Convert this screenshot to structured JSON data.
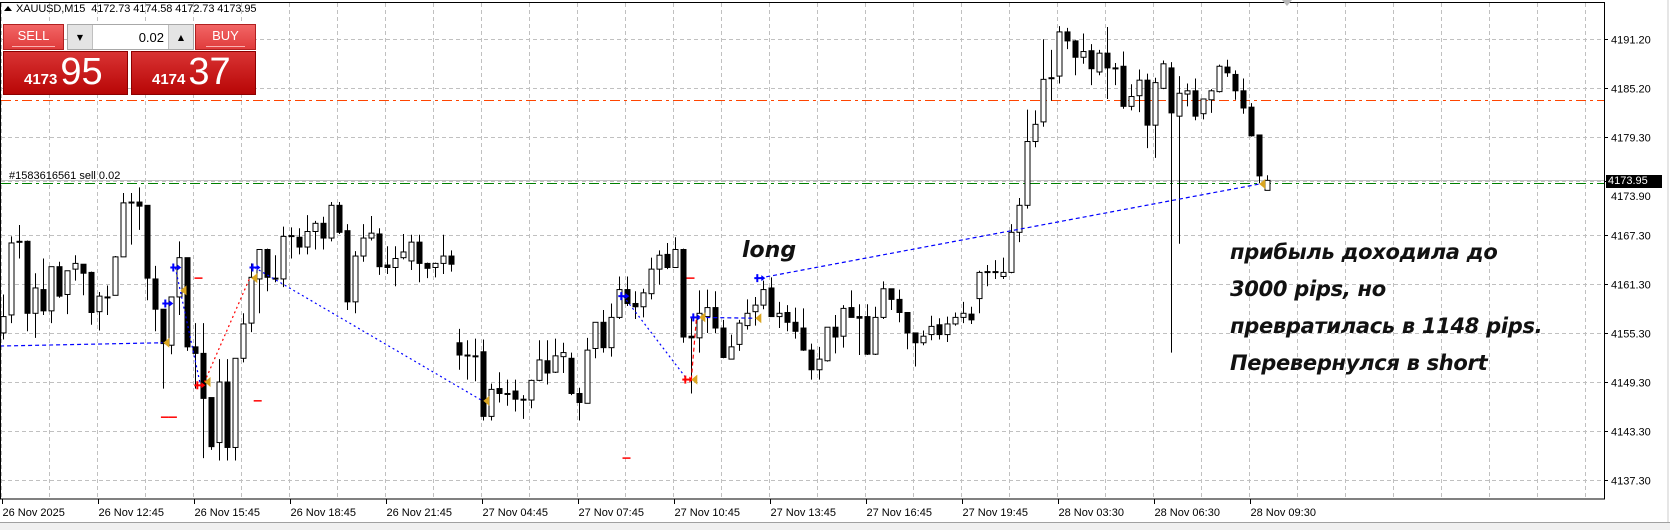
{
  "header": {
    "symbol_tf": "XAUUSD,M15",
    "ohlc": "4172.73 4174.58 4172.73 4173.95"
  },
  "trade_panel": {
    "sell_label": "SELL",
    "buy_label": "BUY",
    "lot_value": "0.02",
    "lot_down_icon": "triangle-down",
    "lot_up_icon": "triangle-up",
    "bid_big": "4173",
    "bid_small": "95",
    "ask_big": "4174",
    "ask_small": "37",
    "color": "#c81414"
  },
  "order_label": "#1583616561 sell 0.02",
  "bid_label": "4173.95",
  "annotations": {
    "long": "long",
    "note_lines": [
      "прибыль доходила до",
      "3000 pips, но",
      "превратилась в 1148 pips.",
      "Перевернулся в short"
    ]
  },
  "chart_data": {
    "type": "candlestick",
    "symbol": "XAUUSD",
    "timeframe": "M15",
    "ylim": [
      4135.0,
      4196.0
    ],
    "grid": true,
    "y_ticks": [
      "4191.20",
      "4185.20",
      "4179.30",
      "4173.90",
      "4167.30",
      "4161.30",
      "4155.30",
      "4149.30",
      "4143.30",
      "4137.30"
    ],
    "x_ticks": [
      "26 Nov 2025",
      "26 Nov 12:45",
      "26 Nov 15:45",
      "26 Nov 18:45",
      "26 Nov 21:45",
      "27 Nov 04:45",
      "27 Nov 07:45",
      "27 Nov 10:45",
      "27 Nov 13:45",
      "27 Nov 16:45",
      "27 Nov 19:45",
      "28 Nov 03:30",
      "28 Nov 06:30",
      "28 Nov 09:30"
    ],
    "colors": {
      "bull_body": "#ffffff",
      "bear_body": "#000000",
      "outline": "#000000",
      "grid": "#c0c0c0",
      "bid_line": "#c0c0c0",
      "order_line": "#008000",
      "level_line": "#ff4500",
      "buy_trade": "#0000ff",
      "sell_trade": "#ff0000",
      "close_marker": "#daa520"
    },
    "levels": [
      {
        "kind": "bid",
        "price": 4173.95
      },
      {
        "kind": "order",
        "price": 4173.6
      },
      {
        "kind": "level",
        "price": 4183.8
      }
    ],
    "candles_ohlc": [
      [
        4155.3,
        4160.0,
        4154.5,
        4157.3
      ],
      [
        4157.5,
        4167.1,
        4156.5,
        4166.3
      ],
      [
        4166.4,
        4168.5,
        4164.4,
        4166.5
      ],
      [
        4166.5,
        4166.6,
        4155.5,
        4157.7
      ],
      [
        4157.7,
        4162.6,
        4154.7,
        4160.8
      ],
      [
        4160.6,
        4164.4,
        4157.5,
        4158.0
      ],
      [
        4158.0,
        4163.4,
        4156.5,
        4163.4
      ],
      [
        4163.4,
        4164.0,
        4159.6,
        4159.8
      ],
      [
        4160.0,
        4162.9,
        4157.6,
        4162.9
      ],
      [
        4163.1,
        4164.8,
        4161.7,
        4163.8
      ],
      [
        4163.7,
        4163.7,
        4159.9,
        4162.6
      ],
      [
        4162.7,
        4162.8,
        4156.3,
        4157.8
      ],
      [
        4157.9,
        4160.3,
        4155.6,
        4159.8
      ],
      [
        4159.7,
        4161.1,
        4157.5,
        4159.7
      ],
      [
        4159.9,
        4164.7,
        4159.9,
        4164.6
      ],
      [
        4164.6,
        4172.4,
        4164.6,
        4171.2
      ],
      [
        4171.2,
        4172.4,
        4166.1,
        4171.3
      ],
      [
        4171.3,
        4173.1,
        4167.9,
        4170.8
      ],
      [
        4170.9,
        4170.9,
        4159.3,
        4162.0
      ],
      [
        4161.9,
        4163.5,
        4155.5,
        4158.2
      ],
      [
        4158.2,
        4158.2,
        4148.5,
        4154.0
      ],
      [
        4153.8,
        4159.7,
        4152.7,
        4159.7
      ],
      [
        4159.7,
        4166.5,
        4157.5,
        4164.5
      ],
      [
        4164.5,
        4164.5,
        4153.1,
        4153.6
      ],
      [
        4153.6,
        4156.5,
        4148.5,
        4152.8
      ],
      [
        4152.8,
        4156.5,
        4140.0,
        4147.3
      ],
      [
        4147.4,
        4147.4,
        4141.0,
        4141.4
      ],
      [
        4141.9,
        4152.1,
        4139.7,
        4149.3
      ],
      [
        4149.3,
        4152.1,
        4139.7,
        4141.3
      ],
      [
        4141.3,
        4152.2,
        4139.7,
        4152.2
      ],
      [
        4152.2,
        4157.7,
        4151.7,
        4156.4
      ],
      [
        4156.5,
        4163.8,
        4155.4,
        4162.1
      ],
      [
        4161.9,
        4165.5,
        4157.7,
        4165.5
      ],
      [
        4165.5,
        4165.6,
        4160.4,
        4162.1
      ],
      [
        4162.0,
        4164.8,
        4161.5,
        4162.0
      ],
      [
        4161.9,
        4168.3,
        4160.9,
        4167.1
      ],
      [
        4167.1,
        4168.2,
        4164.4,
        4167.2
      ],
      [
        4167.0,
        4168.1,
        4164.9,
        4165.8
      ],
      [
        4165.8,
        4169.7,
        4164.9,
        4167.7
      ],
      [
        4167.7,
        4169.0,
        4165.5,
        4168.7
      ],
      [
        4168.7,
        4169.5,
        4165.5,
        4166.9
      ],
      [
        4166.9,
        4171.3,
        4166.5,
        4170.9
      ],
      [
        4170.9,
        4171.3,
        4167.4,
        4167.6
      ],
      [
        4167.8,
        4168.6,
        4158.1,
        4159.1
      ],
      [
        4159.1,
        4165.3,
        4157.7,
        4164.7
      ],
      [
        4164.7,
        4168.6,
        4164.0,
        4166.9
      ],
      [
        4166.9,
        4169.6,
        4166.6,
        4167.5
      ],
      [
        4167.4,
        4168.1,
        4162.4,
        4163.4
      ],
      [
        4163.6,
        4165.9,
        4162.5,
        4163.3
      ],
      [
        4163.3,
        4165.9,
        4161.0,
        4164.4
      ],
      [
        4164.5,
        4167.4,
        4164.3,
        4165.2
      ],
      [
        4164.1,
        4167.3,
        4163.0,
        4166.4
      ],
      [
        4166.4,
        4167.3,
        4161.5,
        4163.8
      ],
      [
        4163.8,
        4163.9,
        4162.0,
        4163.2
      ],
      [
        4163.3,
        4163.9,
        4162.1,
        4163.8
      ],
      [
        4163.8,
        4167.3,
        4162.5,
        4164.7
      ],
      [
        4164.7,
        4165.4,
        4162.8,
        4163.7
      ],
      [
        4154.1,
        4155.8,
        4150.8,
        4152.6
      ],
      [
        4152.6,
        4154.4,
        4149.6,
        4152.5
      ],
      [
        4152.5,
        4154.6,
        4149.4,
        4152.4
      ],
      [
        4153.0,
        4154.5,
        4144.6,
        4145.1
      ],
      [
        4145.1,
        4149.1,
        4144.6,
        4148.4
      ],
      [
        4148.5,
        4150.5,
        4146.8,
        4147.9
      ],
      [
        4147.9,
        4149.6,
        4146.4,
        4147.9
      ],
      [
        4148.2,
        4149.6,
        4145.7,
        4147.2
      ],
      [
        4147.2,
        4147.7,
        4144.8,
        4147.2
      ],
      [
        4147.1,
        4149.6,
        4146.1,
        4149.5
      ],
      [
        4149.5,
        4154.4,
        4149.4,
        4152.0
      ],
      [
        4151.9,
        4154.4,
        4149.0,
        4150.4
      ],
      [
        4150.5,
        4154.6,
        4150.4,
        4152.5
      ],
      [
        4152.4,
        4154.1,
        4150.4,
        4152.9
      ],
      [
        4152.2,
        4152.9,
        4147.7,
        4147.9
      ],
      [
        4147.9,
        4148.6,
        4144.6,
        4146.8
      ],
      [
        4146.7,
        4154.7,
        4146.7,
        4153.2
      ],
      [
        4153.4,
        4156.6,
        4152.2,
        4156.6
      ],
      [
        4156.6,
        4158.1,
        4152.9,
        4153.5
      ],
      [
        4153.5,
        4158.9,
        4152.4,
        4157.2
      ],
      [
        4157.2,
        4162.2,
        4157.0,
        4160.6
      ],
      [
        4160.6,
        4162.2,
        4158.6,
        4158.9
      ],
      [
        4158.9,
        4160.4,
        4157.0,
        4158.5
      ],
      [
        4158.5,
        4160.7,
        4157.2,
        4160.2
      ],
      [
        4160.1,
        4164.5,
        4159.4,
        4163.1
      ],
      [
        4163.1,
        4165.4,
        4161.2,
        4164.8
      ],
      [
        4164.9,
        4166.3,
        4163.1,
        4163.3
      ],
      [
        4163.3,
        4167.0,
        4163.3,
        4165.5
      ],
      [
        4165.5,
        4165.6,
        4154.1,
        4154.8
      ],
      [
        4154.9,
        4157.1,
        4147.9,
        4154.7
      ],
      [
        4154.7,
        4160.5,
        4152.9,
        4157.7
      ],
      [
        4157.3,
        4160.6,
        4155.3,
        4158.4
      ],
      [
        4158.4,
        4160.4,
        4155.3,
        4155.9
      ],
      [
        4155.9,
        4156.9,
        4152.2,
        4152.3
      ],
      [
        4152.1,
        4155.1,
        4152.1,
        4153.6
      ],
      [
        4153.9,
        4156.9,
        4153.1,
        4156.5
      ],
      [
        4156.2,
        4159.4,
        4155.7,
        4157.7
      ],
      [
        4157.9,
        4159.7,
        4156.2,
        4158.7
      ],
      [
        4158.7,
        4161.7,
        4158.2,
        4160.6
      ],
      [
        4160.8,
        4162.1,
        4157.3,
        4157.3
      ],
      [
        4157.3,
        4159.1,
        4155.9,
        4157.7
      ],
      [
        4157.8,
        4158.7,
        4155.5,
        4156.6
      ],
      [
        4156.6,
        4158.4,
        4154.6,
        4155.5
      ],
      [
        4155.9,
        4158.3,
        4153.1,
        4153.2
      ],
      [
        4153.2,
        4154.0,
        4149.6,
        4150.8
      ],
      [
        4150.8,
        4153.6,
        4149.6,
        4152.1
      ],
      [
        4151.9,
        4156.0,
        4151.8,
        4156.0
      ],
      [
        4156.0,
        4157.5,
        4152.8,
        4154.8
      ],
      [
        4154.9,
        4158.7,
        4153.5,
        4158.3
      ],
      [
        4158.4,
        4160.5,
        4157.2,
        4157.2
      ],
      [
        4157.3,
        4158.8,
        4152.6,
        4157.1
      ],
      [
        4157.3,
        4158.8,
        4152.6,
        4152.7
      ],
      [
        4152.7,
        4158.5,
        4152.6,
        4157.2
      ],
      [
        4157.2,
        4161.6,
        4157.0,
        4160.7
      ],
      [
        4160.7,
        4160.7,
        4158.1,
        4159.4
      ],
      [
        4159.4,
        4160.6,
        4156.6,
        4157.8
      ],
      [
        4157.8,
        4157.8,
        4153.3,
        4155.3
      ],
      [
        4155.3,
        4155.3,
        4151.2,
        4154.1
      ],
      [
        4154.1,
        4155.6,
        4153.8,
        4154.9
      ],
      [
        4155.1,
        4157.4,
        4154.4,
        4156.1
      ],
      [
        4156.3,
        4157.1,
        4154.5,
        4155.1
      ],
      [
        4155.1,
        4157.3,
        4154.2,
        4156.4
      ],
      [
        4156.4,
        4157.8,
        4156.2,
        4157.2
      ],
      [
        4157.2,
        4159.1,
        4156.5,
        4157.7
      ],
      [
        4157.6,
        4158.5,
        4156.4,
        4156.9
      ],
      [
        4159.5,
        4162.9,
        4157.7,
        4162.7
      ],
      [
        4162.7,
        4163.6,
        4161.0,
        4162.8
      ],
      [
        4162.7,
        4164.2,
        4161.9,
        4162.8
      ],
      [
        4162.2,
        4164.5,
        4161.9,
        4162.7
      ],
      [
        4162.7,
        4168.6,
        4162.6,
        4167.6
      ],
      [
        4167.6,
        4171.8,
        4166.4,
        4170.9
      ],
      [
        4170.9,
        4182.6,
        4170.5,
        4178.7
      ],
      [
        4178.7,
        4182.5,
        4178.0,
        4180.8
      ],
      [
        4181.1,
        4191.2,
        4180.5,
        4186.3
      ],
      [
        4186.4,
        4189.9,
        4183.7,
        4186.5
      ],
      [
        4186.7,
        4192.8,
        4185.8,
        4192.1
      ],
      [
        4192.1,
        4192.6,
        4190.0,
        4191.0
      ],
      [
        4191.0,
        4191.1,
        4186.8,
        4189.0
      ],
      [
        4189.0,
        4191.9,
        4188.2,
        4189.7
      ],
      [
        4189.8,
        4190.6,
        4185.6,
        4187.6
      ],
      [
        4187.2,
        4189.9,
        4186.8,
        4189.5
      ],
      [
        4189.5,
        4192.7,
        4183.9,
        4187.7
      ],
      [
        4187.7,
        4188.3,
        4185.6,
        4187.6
      ],
      [
        4187.9,
        4189.7,
        4182.7,
        4183.0
      ],
      [
        4183.0,
        4185.7,
        4182.5,
        4184.2
      ],
      [
        4184.3,
        4187.5,
        4182.3,
        4186.2
      ],
      [
        4186.2,
        4187.0,
        4177.9,
        4180.7
      ],
      [
        4180.7,
        4186.5,
        4176.7,
        4185.9
      ],
      [
        4185.2,
        4188.6,
        4185.1,
        4188.2
      ],
      [
        4187.7,
        4188.4,
        4152.9,
        4182.2
      ],
      [
        4181.8,
        4186.7,
        4166.2,
        4184.6
      ],
      [
        4184.5,
        4185.8,
        4183.0,
        4184.9
      ],
      [
        4184.9,
        4186.4,
        4181.3,
        4181.8
      ],
      [
        4182.1,
        4183.9,
        4181.4,
        4183.9
      ],
      [
        4183.8,
        4185.1,
        4182.2,
        4184.9
      ],
      [
        4184.8,
        4188.1,
        4184.7,
        4187.9
      ],
      [
        4187.8,
        4188.7,
        4186.6,
        4187.1
      ],
      [
        4186.9,
        4187.4,
        4183.8,
        4184.9
      ],
      [
        4184.9,
        4186.4,
        4182.1,
        4182.8
      ],
      [
        4182.9,
        4183.4,
        4179.3,
        4179.4
      ],
      [
        4179.5,
        4179.5,
        4173.6,
        4174.5
      ],
      [
        4172.73,
        4174.58,
        4172.73,
        4173.95
      ]
    ],
    "trade_lines": [
      {
        "color": "buy",
        "style": "dash",
        "from": [
          -0.3,
          4153.7
        ],
        "to": [
          20.0,
          4154.1
        ]
      },
      {
        "color": "buy",
        "style": "dot",
        "from": [
          21.6,
          4163.3
        ],
        "to": [
          24.75,
          4148.9
        ]
      },
      {
        "color": "sell",
        "style": "dot",
        "from": [
          25.25,
          4149.3
        ],
        "to": [
          30.9,
          4162.0
        ]
      },
      {
        "color": "buy",
        "style": "dot",
        "from": [
          31.5,
          4163.3
        ],
        "to": [
          60.0,
          4147.0
        ]
      },
      {
        "color": "buy",
        "style": "dot",
        "from": [
          77.6,
          4159.8
        ],
        "to": [
          85.6,
          4149.6
        ]
      },
      {
        "color": "sell",
        "style": "dash",
        "from": [
          86.1,
          4149.6
        ],
        "to": [
          86.75,
          4157.2
        ]
      },
      {
        "color": "buy",
        "style": "dash",
        "from": [
          87.1,
          4157.2
        ],
        "to": [
          94.1,
          4157.1
        ]
      },
      {
        "color": "buy",
        "style": "dash",
        "from": [
          94.6,
          4162.0
        ],
        "to": [
          157.1,
          4173.5
        ]
      }
    ],
    "trade_markers": [
      {
        "kind": "buy-arrow",
        "at": [
          20.6,
          4158.9
        ]
      },
      {
        "kind": "buy-arrow",
        "at": [
          21.6,
          4163.3
        ]
      },
      {
        "kind": "buy-arrow",
        "at": [
          31.5,
          4163.3
        ]
      },
      {
        "kind": "buy-arrow",
        "at": [
          77.6,
          4159.8
        ]
      },
      {
        "kind": "buy-arrow",
        "at": [
          86.6,
          4157.2
        ]
      },
      {
        "kind": "buy-arrow",
        "at": [
          94.6,
          4162.0
        ]
      },
      {
        "kind": "sell-arrow",
        "at": [
          24.6,
          4148.9
        ]
      },
      {
        "kind": "sell-arrow",
        "at": [
          85.6,
          4149.6
        ]
      },
      {
        "kind": "close",
        "at": [
          20.1,
          4154.1
        ]
      },
      {
        "kind": "close",
        "at": [
          22.25,
          4160.5
        ]
      },
      {
        "kind": "close",
        "at": [
          25.25,
          4149.3
        ]
      },
      {
        "kind": "close",
        "at": [
          31.1,
          4162.0
        ]
      },
      {
        "kind": "close",
        "at": [
          60.1,
          4147.0
        ]
      },
      {
        "kind": "close",
        "at": [
          86.1,
          4149.6
        ]
      },
      {
        "kind": "close",
        "at": [
          87.1,
          4157.2
        ]
      },
      {
        "kind": "close",
        "at": [
          94.1,
          4157.1
        ]
      },
      {
        "kind": "close",
        "at": [
          157.1,
          4173.5
        ]
      },
      {
        "kind": "stop-dash",
        "at": [
          24.5,
          4162.0
        ]
      },
      {
        "kind": "stop-dash",
        "at": [
          20.3,
          4145.0
        ]
      },
      {
        "kind": "stop-dash",
        "at": [
          21.3,
          4145.0
        ]
      },
      {
        "kind": "stop-dash",
        "at": [
          31.9,
          4147.0
        ]
      },
      {
        "kind": "stop-dash",
        "at": [
          86.0,
          4162.0
        ]
      },
      {
        "kind": "stop-dash",
        "at": [
          78.0,
          4140.0
        ]
      }
    ]
  }
}
